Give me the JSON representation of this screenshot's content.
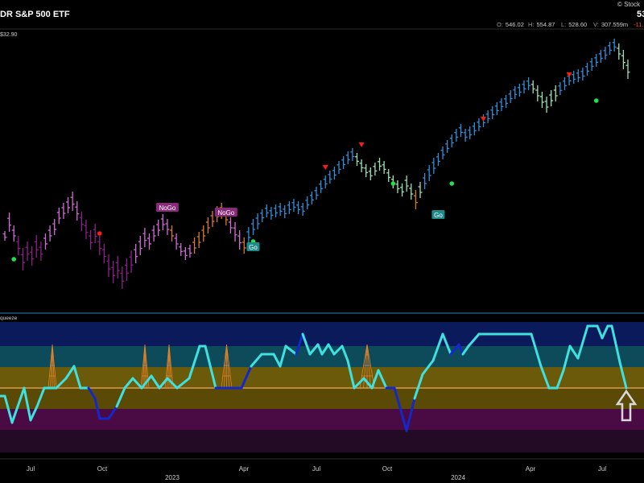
{
  "header": {
    "title": "DR S&P 500 ETF",
    "price_label": "$32.90",
    "brand": "Stock",
    "price_big": "53"
  },
  "ohlc": {
    "open_key": "O:",
    "open": "546.02",
    "high_key": "H:",
    "high": "554.87",
    "low_key": "L:",
    "low": "528.60",
    "vol_key": "V:",
    "vol": "307.559m",
    "change": "-11."
  },
  "indicator": {
    "label": "queeze"
  },
  "colors": {
    "background": "#000000",
    "nogo_strong": "#8e1f8a",
    "nogo_weak": "#d36ad8",
    "nogo_orange": "#d97a2a",
    "go_strong": "#2f8fd8",
    "go_weak": "#9ee0b0",
    "line_cyan": "#3fe0e0",
    "line_blue": "#1428c8",
    "zero_line": "#d99a4a",
    "marker_red": "#ff1a1a",
    "marker_green": "#1ee050"
  },
  "chart_data": {
    "type": "line",
    "x_tick_labels": [
      "Jul",
      "Oct",
      "2023",
      "Apr",
      "Jul",
      "Oct",
      "2024",
      "Apr",
      "Jul"
    ],
    "price_bars": [
      {
        "y": 293,
        "r": 6,
        "c": "nogo_weak"
      },
      {
        "y": 276,
        "r": 12,
        "c": "nogo_weak"
      },
      {
        "y": 290,
        "r": 10,
        "c": "nogo_weak"
      },
      {
        "y": 305,
        "r": 12,
        "c": "nogo_strong"
      },
      {
        "y": 322,
        "r": 14,
        "c": "nogo_strong"
      },
      {
        "y": 312,
        "r": 12,
        "c": "nogo_strong"
      },
      {
        "y": 318,
        "r": 12,
        "c": "nogo_strong"
      },
      {
        "y": 306,
        "r": 14,
        "c": "nogo_strong"
      },
      {
        "y": 312,
        "r": 12,
        "c": "nogo_strong"
      },
      {
        "y": 300,
        "r": 10,
        "c": "nogo_weak"
      },
      {
        "y": 290,
        "r": 10,
        "c": "nogo_weak"
      },
      {
        "y": 282,
        "r": 10,
        "c": "nogo_weak"
      },
      {
        "y": 268,
        "r": 10,
        "c": "nogo_weak"
      },
      {
        "y": 262,
        "r": 10,
        "c": "nogo_weak"
      },
      {
        "y": 255,
        "r": 10,
        "c": "nogo_weak"
      },
      {
        "y": 250,
        "r": 12,
        "c": "nogo_weak"
      },
      {
        "y": 262,
        "r": 12,
        "c": "nogo_weak"
      },
      {
        "y": 275,
        "r": 12,
        "c": "nogo_strong"
      },
      {
        "y": 285,
        "r": 12,
        "c": "nogo_strong"
      },
      {
        "y": 298,
        "r": 12,
        "c": "nogo_strong"
      },
      {
        "y": 290,
        "r": 12,
        "c": "nogo_strong"
      },
      {
        "y": 305,
        "r": 12,
        "c": "nogo_strong"
      },
      {
        "y": 315,
        "r": 12,
        "c": "nogo_strong"
      },
      {
        "y": 330,
        "r": 14,
        "c": "nogo_strong"
      },
      {
        "y": 338,
        "r": 14,
        "c": "nogo_strong"
      },
      {
        "y": 332,
        "r": 14,
        "c": "nogo_strong"
      },
      {
        "y": 345,
        "r": 14,
        "c": "nogo_strong"
      },
      {
        "y": 335,
        "r": 14,
        "c": "nogo_strong"
      },
      {
        "y": 325,
        "r": 14,
        "c": "nogo_strong"
      },
      {
        "y": 315,
        "r": 12,
        "c": "nogo_weak"
      },
      {
        "y": 305,
        "r": 12,
        "c": "nogo_weak"
      },
      {
        "y": 295,
        "r": 12,
        "c": "nogo_weak"
      },
      {
        "y": 300,
        "r": 10,
        "c": "nogo_weak"
      },
      {
        "y": 290,
        "r": 10,
        "c": "nogo_weak"
      },
      {
        "y": 283,
        "r": 10,
        "c": "nogo_weak"
      },
      {
        "y": 276,
        "r": 10,
        "c": "nogo_weak"
      },
      {
        "y": 282,
        "r": 10,
        "c": "nogo_weak"
      },
      {
        "y": 290,
        "r": 10,
        "c": "nogo_orange"
      },
      {
        "y": 300,
        "r": 10,
        "c": "nogo_weak"
      },
      {
        "y": 310,
        "r": 8,
        "c": "nogo_weak"
      },
      {
        "y": 315,
        "r": 8,
        "c": "nogo_weak"
      },
      {
        "y": 312,
        "r": 8,
        "c": "nogo_weak"
      },
      {
        "y": 305,
        "r": 10,
        "c": "nogo_orange"
      },
      {
        "y": 298,
        "r": 10,
        "c": "nogo_orange"
      },
      {
        "y": 290,
        "r": 10,
        "c": "nogo_orange"
      },
      {
        "y": 280,
        "r": 10,
        "c": "nogo_orange"
      },
      {
        "y": 272,
        "r": 10,
        "c": "nogo_orange"
      },
      {
        "y": 266,
        "r": 10,
        "c": "nogo_orange"
      },
      {
        "y": 262,
        "r": 10,
        "c": "nogo_orange"
      },
      {
        "y": 270,
        "r": 10,
        "c": "nogo_orange"
      },
      {
        "y": 280,
        "r": 10,
        "c": "nogo_weak"
      },
      {
        "y": 288,
        "r": 12,
        "c": "nogo_weak"
      },
      {
        "y": 298,
        "r": 12,
        "c": "nogo_weak"
      },
      {
        "y": 305,
        "r": 10,
        "c": "nogo_orange"
      },
      {
        "y": 292,
        "r": 10,
        "c": "go_strong"
      },
      {
        "y": 282,
        "r": 10,
        "c": "go_strong"
      },
      {
        "y": 275,
        "r": 10,
        "c": "go_strong"
      },
      {
        "y": 268,
        "r": 8,
        "c": "go_strong"
      },
      {
        "y": 262,
        "r": 8,
        "c": "go_strong"
      },
      {
        "y": 265,
        "r": 8,
        "c": "go_strong"
      },
      {
        "y": 262,
        "r": 8,
        "c": "go_strong"
      },
      {
        "y": 260,
        "r": 8,
        "c": "go_strong"
      },
      {
        "y": 263,
        "r": 8,
        "c": "go_strong"
      },
      {
        "y": 258,
        "r": 8,
        "c": "go_strong"
      },
      {
        "y": 255,
        "r": 8,
        "c": "go_strong"
      },
      {
        "y": 258,
        "r": 8,
        "c": "go_strong"
      },
      {
        "y": 260,
        "r": 8,
        "c": "go_strong"
      },
      {
        "y": 252,
        "r": 8,
        "c": "go_strong"
      },
      {
        "y": 246,
        "r": 8,
        "c": "go_strong"
      },
      {
        "y": 240,
        "r": 8,
        "c": "go_strong"
      },
      {
        "y": 232,
        "r": 8,
        "c": "go_strong"
      },
      {
        "y": 226,
        "r": 8,
        "c": "go_strong"
      },
      {
        "y": 220,
        "r": 8,
        "c": "go_strong"
      },
      {
        "y": 215,
        "r": 8,
        "c": "go_strong"
      },
      {
        "y": 208,
        "r": 8,
        "c": "go_strong"
      },
      {
        "y": 202,
        "r": 8,
        "c": "go_strong"
      },
      {
        "y": 196,
        "r": 8,
        "c": "go_strong"
      },
      {
        "y": 192,
        "r": 8,
        "c": "go_strong"
      },
      {
        "y": 198,
        "r": 8,
        "c": "go_weak"
      },
      {
        "y": 206,
        "r": 8,
        "c": "go_weak"
      },
      {
        "y": 212,
        "r": 8,
        "c": "go_weak"
      },
      {
        "y": 216,
        "r": 8,
        "c": "go_weak"
      },
      {
        "y": 210,
        "r": 8,
        "c": "go_weak"
      },
      {
        "y": 204,
        "r": 8,
        "c": "go_weak"
      },
      {
        "y": 208,
        "r": 8,
        "c": "go_weak"
      },
      {
        "y": 218,
        "r": 8,
        "c": "go_weak"
      },
      {
        "y": 226,
        "r": 8,
        "c": "go_weak"
      },
      {
        "y": 232,
        "r": 8,
        "c": "go_weak"
      },
      {
        "y": 236,
        "r": 8,
        "c": "go_weak"
      },
      {
        "y": 228,
        "r": 10,
        "c": "go_weak"
      },
      {
        "y": 238,
        "r": 10,
        "c": "go_weak"
      },
      {
        "y": 248,
        "r": 12,
        "c": "nogo_orange"
      },
      {
        "y": 236,
        "r": 10,
        "c": "go_weak"
      },
      {
        "y": 225,
        "r": 10,
        "c": "go_strong"
      },
      {
        "y": 215,
        "r": 10,
        "c": "go_strong"
      },
      {
        "y": 206,
        "r": 10,
        "c": "go_strong"
      },
      {
        "y": 198,
        "r": 8,
        "c": "go_strong"
      },
      {
        "y": 190,
        "r": 8,
        "c": "go_strong"
      },
      {
        "y": 182,
        "r": 8,
        "c": "go_strong"
      },
      {
        "y": 175,
        "r": 8,
        "c": "go_strong"
      },
      {
        "y": 168,
        "r": 8,
        "c": "go_strong"
      },
      {
        "y": 162,
        "r": 8,
        "c": "go_strong"
      },
      {
        "y": 168,
        "r": 8,
        "c": "go_strong"
      },
      {
        "y": 165,
        "r": 8,
        "c": "go_strong"
      },
      {
        "y": 160,
        "r": 8,
        "c": "go_strong"
      },
      {
        "y": 155,
        "r": 8,
        "c": "go_strong"
      },
      {
        "y": 150,
        "r": 8,
        "c": "go_strong"
      },
      {
        "y": 145,
        "r": 8,
        "c": "go_strong"
      },
      {
        "y": 140,
        "r": 8,
        "c": "go_strong"
      },
      {
        "y": 135,
        "r": 8,
        "c": "go_strong"
      },
      {
        "y": 130,
        "r": 8,
        "c": "go_strong"
      },
      {
        "y": 126,
        "r": 8,
        "c": "go_strong"
      },
      {
        "y": 120,
        "r": 8,
        "c": "go_strong"
      },
      {
        "y": 115,
        "r": 8,
        "c": "go_strong"
      },
      {
        "y": 112,
        "r": 8,
        "c": "go_strong"
      },
      {
        "y": 108,
        "r": 8,
        "c": "go_strong"
      },
      {
        "y": 104,
        "r": 8,
        "c": "go_strong"
      },
      {
        "y": 108,
        "r": 8,
        "c": "go_weak"
      },
      {
        "y": 116,
        "r": 10,
        "c": "go_weak"
      },
      {
        "y": 124,
        "r": 10,
        "c": "go_weak"
      },
      {
        "y": 130,
        "r": 10,
        "c": "go_weak"
      },
      {
        "y": 122,
        "r": 10,
        "c": "go_weak"
      },
      {
        "y": 116,
        "r": 10,
        "c": "go_weak"
      },
      {
        "y": 110,
        "r": 8,
        "c": "go_strong"
      },
      {
        "y": 104,
        "r": 8,
        "c": "go_strong"
      },
      {
        "y": 98,
        "r": 8,
        "c": "go_strong"
      },
      {
        "y": 96,
        "r": 8,
        "c": "go_strong"
      },
      {
        "y": 94,
        "r": 8,
        "c": "go_strong"
      },
      {
        "y": 92,
        "r": 8,
        "c": "go_strong"
      },
      {
        "y": 86,
        "r": 8,
        "c": "go_strong"
      },
      {
        "y": 80,
        "r": 8,
        "c": "go_strong"
      },
      {
        "y": 75,
        "r": 8,
        "c": "go_strong"
      },
      {
        "y": 70,
        "r": 8,
        "c": "go_strong"
      },
      {
        "y": 66,
        "r": 8,
        "c": "go_strong"
      },
      {
        "y": 60,
        "r": 8,
        "c": "go_strong"
      },
      {
        "y": 56,
        "r": 8,
        "c": "go_strong"
      },
      {
        "y": 64,
        "r": 10,
        "c": "go_weak"
      },
      {
        "y": 74,
        "r": 12,
        "c": "go_weak"
      },
      {
        "y": 86,
        "r": 12,
        "c": "go_weak"
      }
    ],
    "price_markers": [
      {
        "i": 2,
        "kind": "green_dot",
        "y": 322
      },
      {
        "i": 21,
        "kind": "red_dot",
        "y": 290
      },
      {
        "i": 55,
        "kind": "green_dot",
        "y": 300
      },
      {
        "i": 71,
        "kind": "red_tri",
        "y": 208
      },
      {
        "i": 79,
        "kind": "red_tri",
        "y": 180
      },
      {
        "i": 86,
        "kind": "green_dot",
        "y": 228
      },
      {
        "i": 99,
        "kind": "green_dot",
        "y": 228
      },
      {
        "i": 106,
        "kind": "red_tri",
        "y": 148
      },
      {
        "i": 125,
        "kind": "red_tri",
        "y": 93
      },
      {
        "i": 131,
        "kind": "green_dot",
        "y": 125
      },
      {
        "i": 143,
        "kind": "red_tri",
        "y": 40
      }
    ],
    "price_labels": [
      {
        "text": "NoGo",
        "i": 36,
        "y": 258,
        "kind": "nogo"
      },
      {
        "text": "NoGo",
        "i": 49,
        "y": 264,
        "kind": "nogo"
      },
      {
        "text": "Go",
        "i": 55,
        "y": 307,
        "kind": "go"
      },
      {
        "text": "Go",
        "i": 96,
        "y": 267,
        "kind": "go"
      }
    ],
    "oscillator_points": [
      [
        0,
        492,
        "cyan"
      ],
      [
        6,
        492,
        "cyan"
      ],
      [
        15,
        525,
        "cyan"
      ],
      [
        22,
        505,
        "cyan"
      ],
      [
        30,
        482,
        "cyan"
      ],
      [
        38,
        522,
        "cyan"
      ],
      [
        46,
        505,
        "cyan"
      ],
      [
        55,
        482,
        "cyan"
      ],
      [
        70,
        482,
        "cyan"
      ],
      [
        82,
        470,
        "cyan"
      ],
      [
        92,
        455,
        "cyan"
      ],
      [
        100,
        482,
        "cyan"
      ],
      [
        110,
        482,
        "cyan"
      ],
      [
        118,
        495,
        "blue"
      ],
      [
        124,
        520,
        "blue"
      ],
      [
        135,
        520,
        "blue"
      ],
      [
        145,
        505,
        "blue"
      ],
      [
        155,
        482,
        "cyan"
      ],
      [
        165,
        470,
        "cyan"
      ],
      [
        176,
        482,
        "cyan"
      ],
      [
        188,
        467,
        "cyan"
      ],
      [
        198,
        482,
        "cyan"
      ],
      [
        208,
        470,
        "cyan"
      ],
      [
        220,
        482,
        "cyan"
      ],
      [
        235,
        470,
        "cyan"
      ],
      [
        248,
        430,
        "cyan"
      ],
      [
        255,
        430,
        "cyan"
      ],
      [
        268,
        482,
        "cyan"
      ],
      [
        300,
        482,
        "blue"
      ],
      [
        312,
        455,
        "blue"
      ],
      [
        325,
        440,
        "cyan"
      ],
      [
        340,
        440,
        "cyan"
      ],
      [
        348,
        455,
        "cyan"
      ],
      [
        355,
        430,
        "cyan"
      ],
      [
        368,
        440,
        "cyan"
      ],
      [
        376,
        415,
        "blue"
      ],
      [
        385,
        440,
        "cyan"
      ],
      [
        395,
        428,
        "cyan"
      ],
      [
        400,
        440,
        "cyan"
      ],
      [
        408,
        428,
        "cyan"
      ],
      [
        415,
        440,
        "cyan"
      ],
      [
        425,
        430,
        "cyan"
      ],
      [
        432,
        448,
        "cyan"
      ],
      [
        440,
        482,
        "cyan"
      ],
      [
        452,
        470,
        "cyan"
      ],
      [
        462,
        482,
        "cyan"
      ],
      [
        470,
        460,
        "cyan"
      ],
      [
        480,
        482,
        "cyan"
      ],
      [
        490,
        482,
        "blue"
      ],
      [
        498,
        510,
        "blue"
      ],
      [
        505,
        535,
        "blue"
      ],
      [
        515,
        495,
        "blue"
      ],
      [
        525,
        465,
        "cyan"
      ],
      [
        538,
        448,
        "cyan"
      ],
      [
        550,
        415,
        "cyan"
      ],
      [
        560,
        440,
        "cyan"
      ],
      [
        570,
        428,
        "blue"
      ],
      [
        575,
        440,
        "blue"
      ],
      [
        582,
        430,
        "cyan"
      ],
      [
        595,
        415,
        "cyan"
      ],
      [
        660,
        415,
        "cyan"
      ],
      [
        672,
        455,
        "cyan"
      ],
      [
        682,
        482,
        "cyan"
      ],
      [
        692,
        482,
        "cyan"
      ],
      [
        700,
        460,
        "cyan"
      ],
      [
        708,
        430,
        "cyan"
      ],
      [
        718,
        445,
        "cyan"
      ],
      [
        730,
        405,
        "cyan"
      ],
      [
        742,
        405,
        "cyan"
      ],
      [
        748,
        420,
        "cyan"
      ],
      [
        755,
        405,
        "cyan"
      ],
      [
        760,
        405,
        "cyan"
      ],
      [
        770,
        450,
        "cyan"
      ],
      [
        778,
        482,
        "cyan"
      ]
    ],
    "squeeze_cones": [
      60,
      70,
      175,
      185,
      205,
      215,
      275,
      288,
      447,
      465
    ],
    "zero_line": 0
  }
}
